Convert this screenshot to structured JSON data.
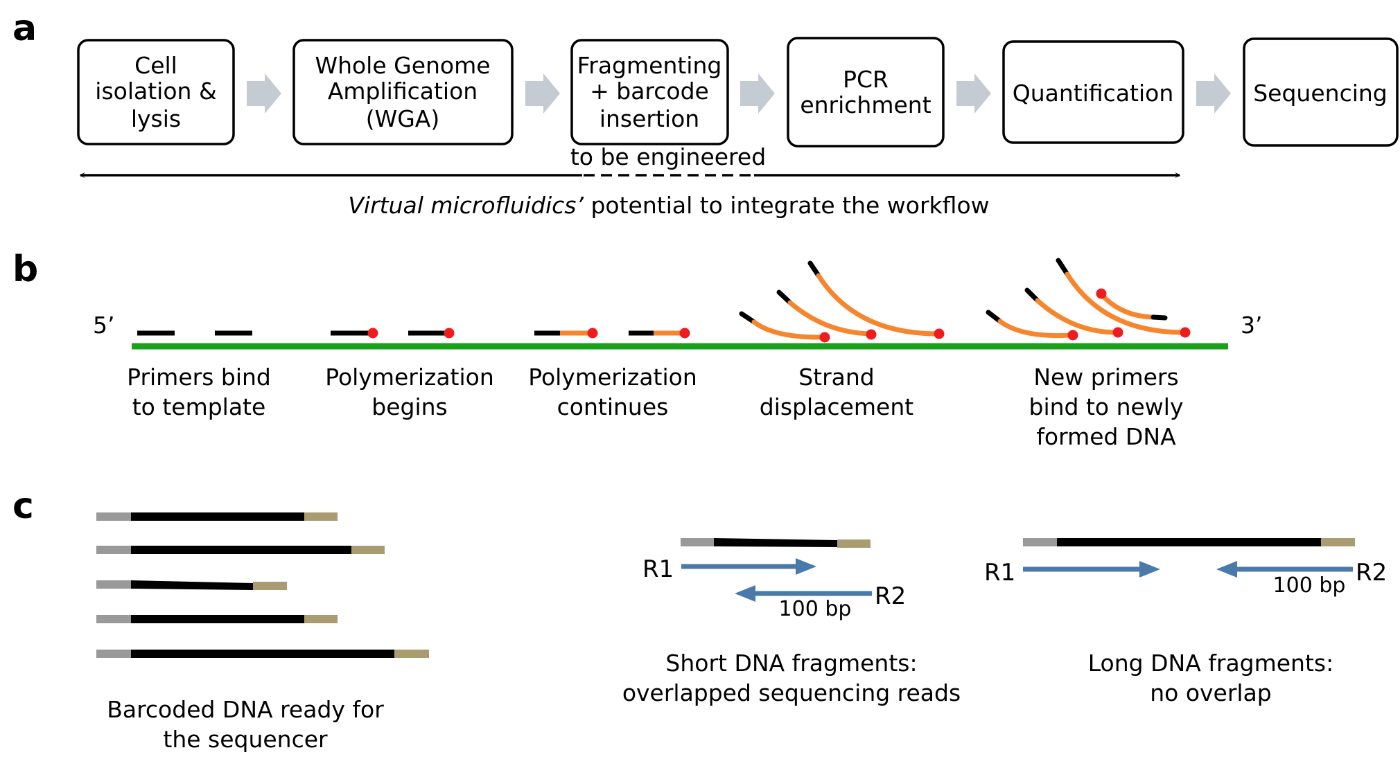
{
  "panel_a": {
    "letter": "a",
    "steps": [
      {
        "lines": [
          "Cell",
          "isolation &",
          "lysis"
        ]
      },
      {
        "lines": [
          "Whole Genome",
          "Amplification",
          "(WGA)"
        ]
      },
      {
        "lines": [
          "Fragmenting",
          "+ barcode",
          "insertion"
        ]
      },
      {
        "lines": [
          "PCR",
          "enrichment"
        ]
      },
      {
        "lines": [
          "Quantification"
        ]
      },
      {
        "lines": [
          "Sequencing"
        ]
      }
    ],
    "engineered_note": "to be engineered",
    "caption_italic": "Virtual microfluidics’",
    "caption_rest": " potential to integrate the workflow"
  },
  "panel_b": {
    "letter": "b",
    "end_5": "5’",
    "end_3": "3’",
    "stages": [
      {
        "lines": [
          "Primers bind",
          "to template"
        ]
      },
      {
        "lines": [
          "Polymerization",
          "begins"
        ]
      },
      {
        "lines": [
          "Polymerization",
          "continues"
        ]
      },
      {
        "lines": [
          "Strand",
          "displacement"
        ]
      },
      {
        "lines": [
          "New primers",
          "bind to newly",
          "formed DNA"
        ]
      }
    ]
  },
  "panel_c": {
    "letter": "c",
    "caption_barcoded": [
      "Barcoded DNA ready for",
      "the sequencer"
    ],
    "short": {
      "r1": "R1",
      "r2": "R2",
      "bp": "100 bp",
      "caption": [
        "Short DNA fragments:",
        "overlapped sequencing reads"
      ]
    },
    "long": {
      "r1": "R1",
      "r2": "R2",
      "bp": "100 bp",
      "caption": [
        "Long DNA fragments:",
        "no overlap"
      ]
    }
  },
  "colors": {
    "template": "#1aa01a",
    "primer": "#000000",
    "new_strand": "#f5862d",
    "polymerase": "#ee1c1c",
    "arrow_gray": "#c5cbd3",
    "read_arrow": "#4a7aaa",
    "barcode_left": "#999999",
    "barcode_right": "#a89c70"
  }
}
